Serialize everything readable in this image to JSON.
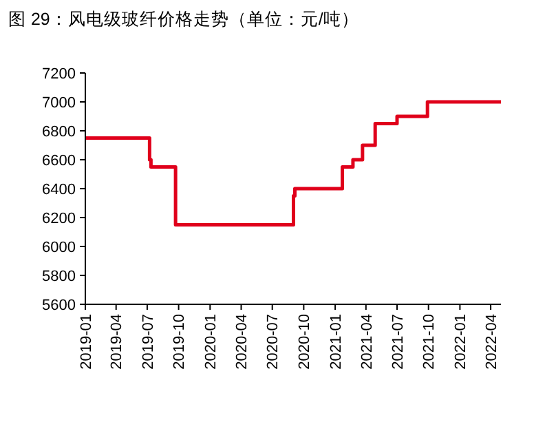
{
  "chart_data": {
    "type": "step",
    "title": "图 29：风电级玻纤价格走势（单位：元/吨）",
    "x": [
      "2019-01-01",
      "2019-07-08",
      "2019-07-12",
      "2019-09-22",
      "2020-09-01",
      "2020-09-05",
      "2021-01-22",
      "2021-02-22",
      "2021-03-22",
      "2021-04-28",
      "2021-07-01",
      "2021-09-28",
      "2022-05-01"
    ],
    "series": [
      {
        "color": "#e0001b",
        "values": [
          6750,
          6600,
          6550,
          6150,
          6350,
          6400,
          6550,
          6600,
          6700,
          6850,
          6900,
          7000,
          7000
        ]
      }
    ],
    "xlim": [
      "2019-01-01",
      "2022-05-01"
    ],
    "xticks": [
      "2019-01",
      "2019-04",
      "2019-07",
      "2019-10",
      "2020-01",
      "2020-04",
      "2020-07",
      "2020-10",
      "2021-01",
      "2021-04",
      "2021-07",
      "2021-10",
      "2022-01",
      "2022-04"
    ],
    "ylim": [
      5600,
      7200
    ],
    "yticks": [
      5600,
      5800,
      6000,
      6200,
      6400,
      6600,
      6800,
      7000,
      7200
    ],
    "grid": false,
    "line_style": "solid"
  }
}
